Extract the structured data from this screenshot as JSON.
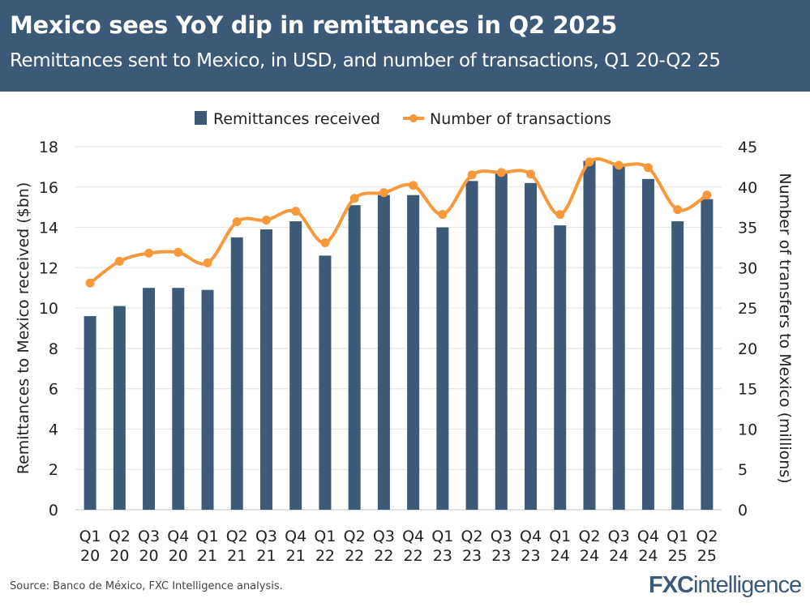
{
  "header": {
    "title": "Mexico sees YoY dip in remittances in Q2 2025",
    "subtitle": "Remittances sent to Mexico, in USD, and number of transactions, Q1 20-Q2 25"
  },
  "footer": {
    "source": "Source: Banco de México, FXC Intelligence analysis.",
    "logo": "FXCintelligence"
  },
  "colors": {
    "header_bg": "#3c5a78",
    "bar": "#3d5a78",
    "line": "#f7993a"
  },
  "chart_data": {
    "type": "bar+line",
    "categories": [
      "Q1 20",
      "Q2 20",
      "Q3 20",
      "Q4 20",
      "Q1 21",
      "Q2 21",
      "Q3 21",
      "Q4 21",
      "Q1 22",
      "Q2 22",
      "Q3 22",
      "Q4 22",
      "Q1 23",
      "Q2 23",
      "Q3 23",
      "Q4 23",
      "Q1 24",
      "Q2 24",
      "Q3 24",
      "Q4 24",
      "Q1 25",
      "Q2 25"
    ],
    "series": [
      {
        "name": "Remittances received",
        "type": "bar",
        "axis": "left",
        "values": [
          9.6,
          10.1,
          11.0,
          11.0,
          10.9,
          13.5,
          13.9,
          14.3,
          12.6,
          15.1,
          15.6,
          15.6,
          14.0,
          16.3,
          16.8,
          16.2,
          14.1,
          17.3,
          17.1,
          16.4,
          14.3,
          15.4
        ]
      },
      {
        "name": "Number of transactions",
        "type": "line",
        "axis": "right",
        "values": [
          28.1,
          30.8,
          31.8,
          31.9,
          30.6,
          35.7,
          35.9,
          37.0,
          33.1,
          38.6,
          39.3,
          40.2,
          36.6,
          41.5,
          41.8,
          41.6,
          36.6,
          43.1,
          42.7,
          42.4,
          37.2,
          39.0
        ]
      }
    ],
    "ylabel": "Remittances to Mexico received ($bn)",
    "y2label": "Number of transfers to Mexico (millions)",
    "ylim": [
      0,
      18
    ],
    "yticks": [
      0,
      2,
      4,
      6,
      8,
      10,
      12,
      14,
      16,
      18
    ],
    "y2lim": [
      0,
      45
    ],
    "y2ticks": [
      0,
      5,
      10,
      15,
      20,
      25,
      30,
      35,
      40,
      45
    ],
    "grid": true,
    "legend": "top-center"
  }
}
